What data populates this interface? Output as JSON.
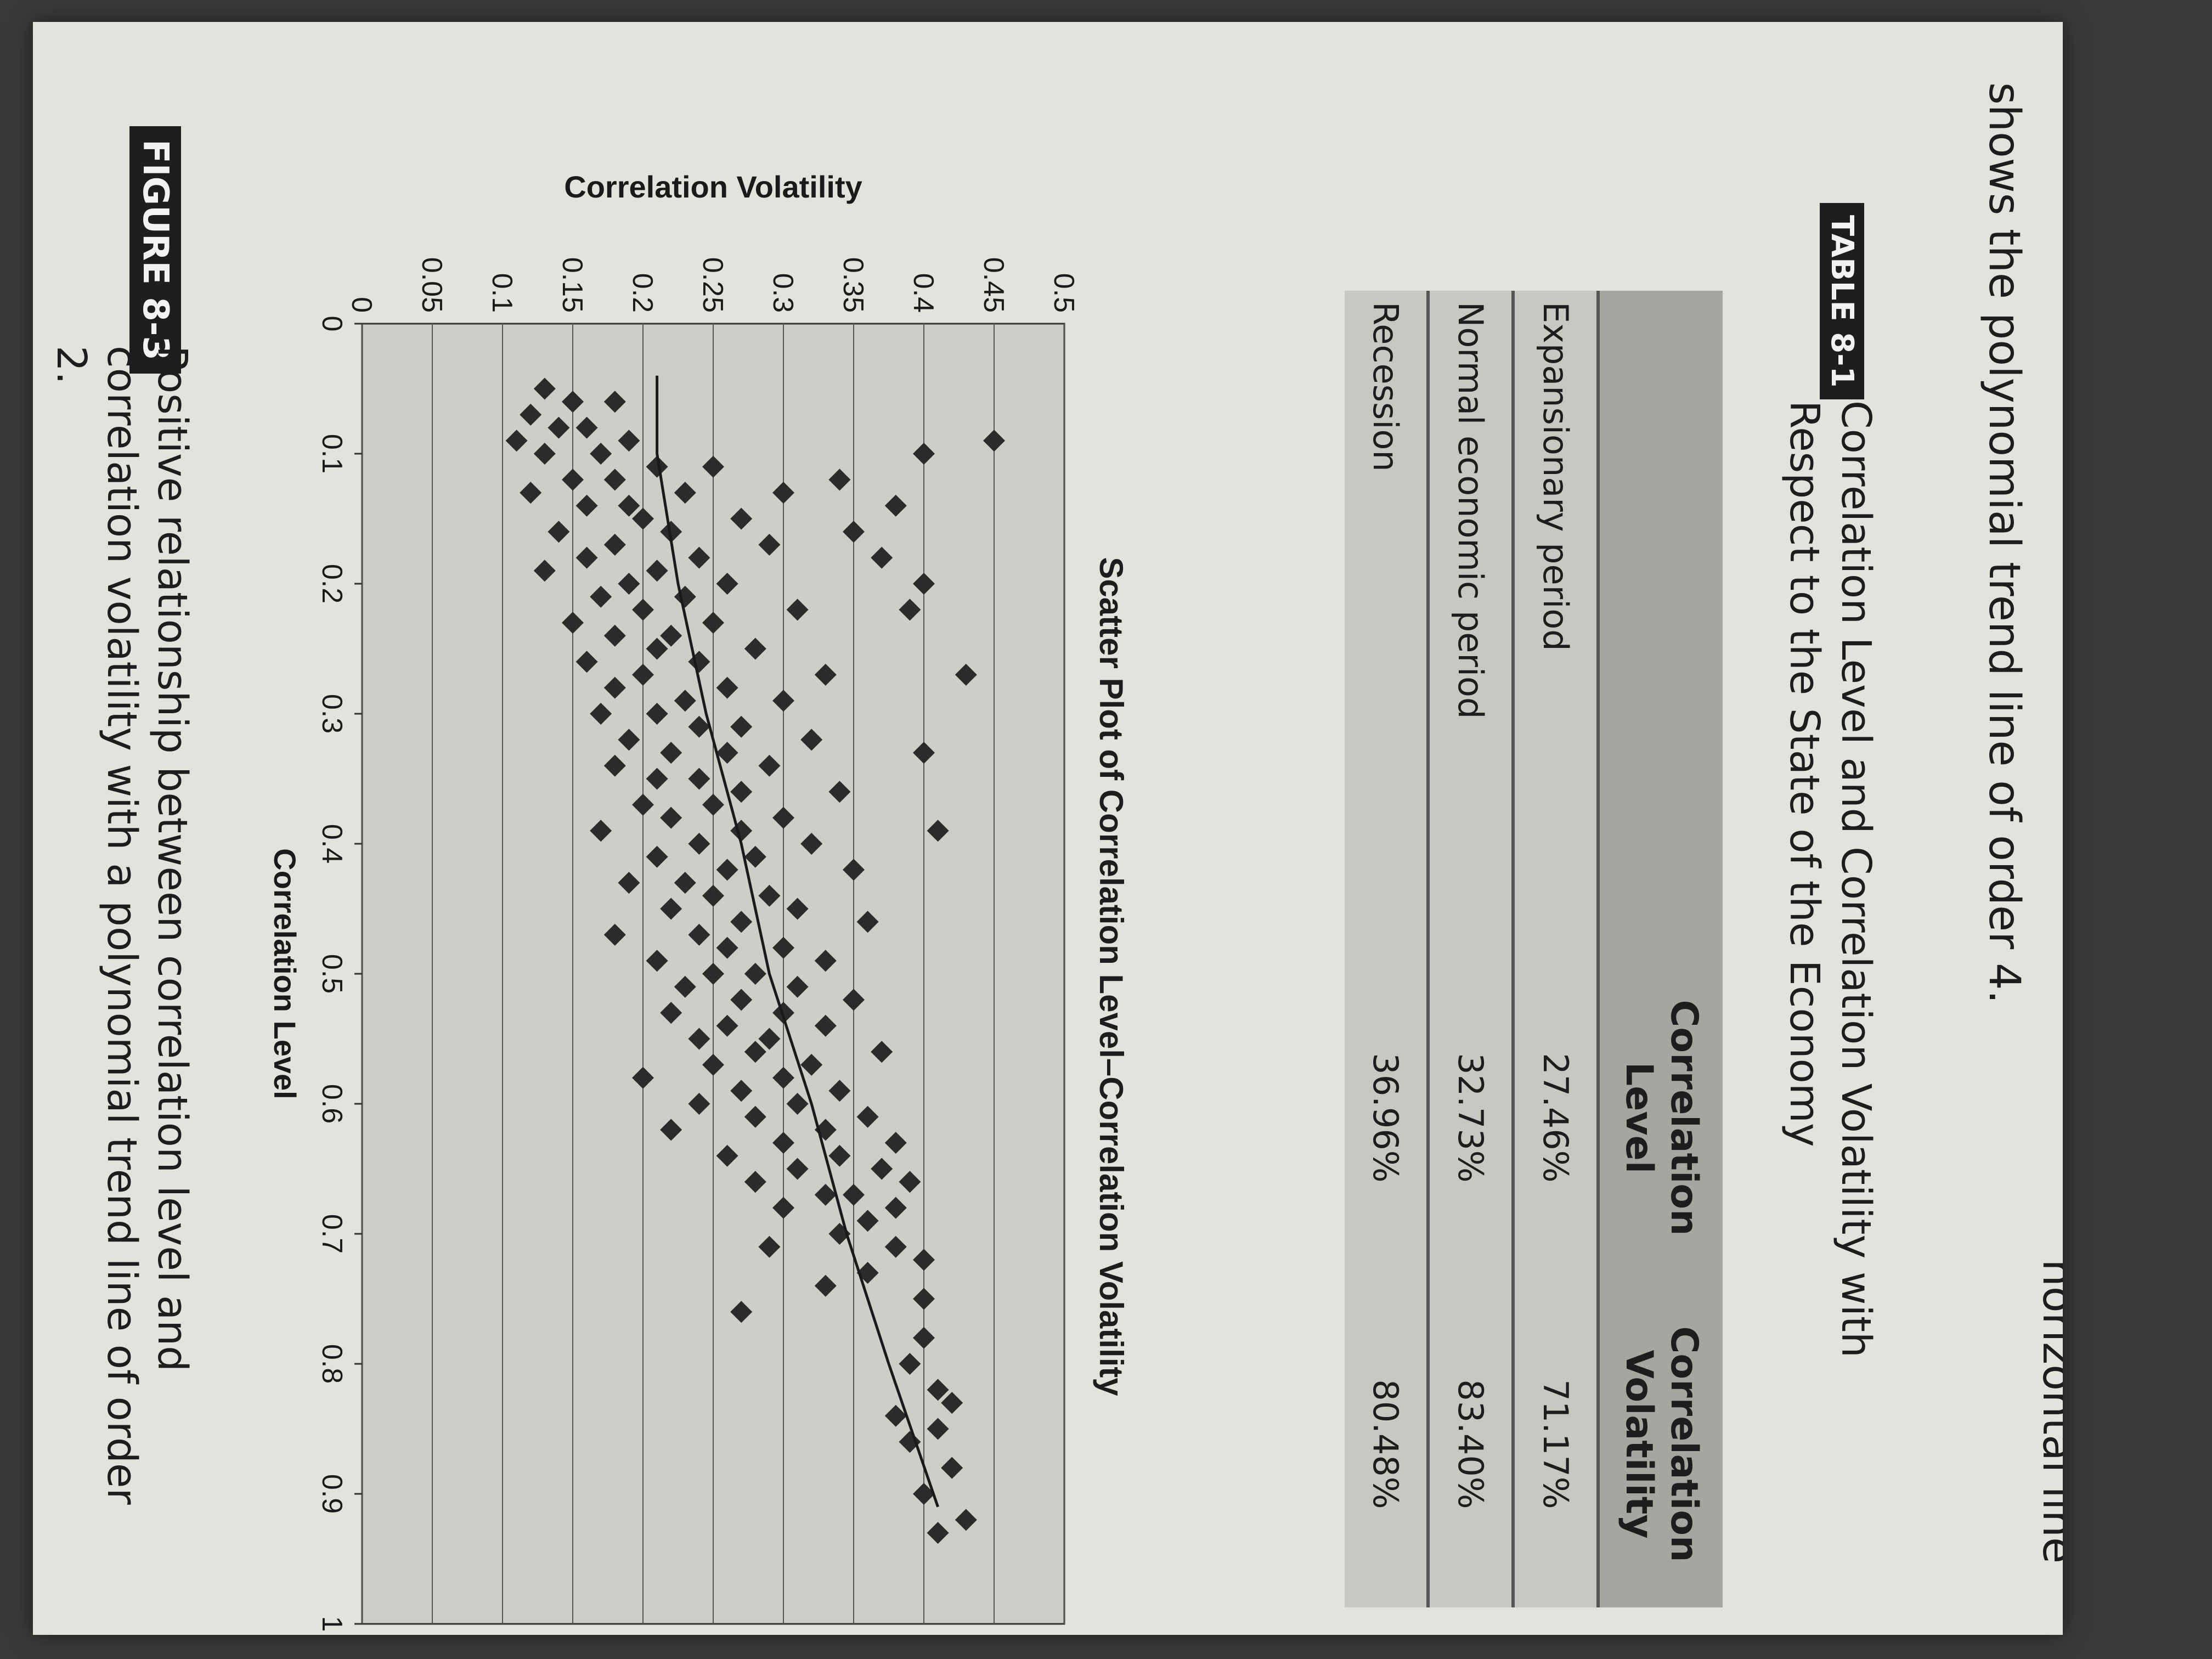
{
  "intro_text": {
    "line1": "shows the polynomial trend line of order 4.",
    "line2": "horizontal line"
  },
  "table": {
    "label": "TABLE 8-1",
    "caption": "Correlation Level and Correlation Volatility with Respect to the State of the Economy",
    "headers": [
      "",
      "Correlation Level",
      "Correlation Volatility"
    ],
    "rows": [
      [
        "Expansionary period",
        "27.46%",
        "71.17%"
      ],
      [
        "Normal economic period",
        "32.73%",
        "83.40%"
      ],
      [
        "Recession",
        "36.96%",
        "80.48%"
      ]
    ]
  },
  "figure": {
    "label": "FIGURE 8-3",
    "caption": "Positive relationship between correlation level and correlation volatility with a polynomial trend line of order 2."
  },
  "chart_data": {
    "type": "scatter",
    "title": "Scatter Plot of Correlation Level–Correlation Volatility",
    "xlabel": "Correlation Level",
    "ylabel": "Correlation Volatility",
    "xlim": [
      0,
      1
    ],
    "ylim": [
      0,
      0.5
    ],
    "xticks": [
      "0",
      "0.1",
      "0.2",
      "0.3",
      "0.4",
      "0.5",
      "0.6",
      "0.7",
      "0.8",
      "0.9",
      "1"
    ],
    "yticks": [
      "0",
      "0.05",
      "0.1",
      "0.15",
      "0.2",
      "0.25",
      "0.3",
      "0.35",
      "0.4",
      "0.45",
      "0.5"
    ],
    "grid": "horizontal",
    "legend": "none",
    "marker": "diamond",
    "point_color": "#2b2b2b",
    "series": [
      {
        "points": [
          [
            0.05,
            0.13
          ],
          [
            0.06,
            0.15
          ],
          [
            0.06,
            0.18
          ],
          [
            0.07,
            0.12
          ],
          [
            0.08,
            0.14
          ],
          [
            0.08,
            0.16
          ],
          [
            0.09,
            0.19
          ],
          [
            0.09,
            0.11
          ],
          [
            0.1,
            0.17
          ],
          [
            0.1,
            0.13
          ],
          [
            0.11,
            0.21
          ],
          [
            0.11,
            0.25
          ],
          [
            0.12,
            0.15
          ],
          [
            0.12,
            0.18
          ],
          [
            0.13,
            0.12
          ],
          [
            0.13,
            0.23
          ],
          [
            0.14,
            0.19
          ],
          [
            0.14,
            0.16
          ],
          [
            0.15,
            0.27
          ],
          [
            0.15,
            0.2
          ],
          [
            0.16,
            0.14
          ],
          [
            0.16,
            0.22
          ],
          [
            0.17,
            0.18
          ],
          [
            0.17,
            0.29
          ],
          [
            0.18,
            0.16
          ],
          [
            0.18,
            0.24
          ],
          [
            0.19,
            0.21
          ],
          [
            0.19,
            0.13
          ],
          [
            0.2,
            0.19
          ],
          [
            0.2,
            0.26
          ],
          [
            0.21,
            0.17
          ],
          [
            0.21,
            0.23
          ],
          [
            0.22,
            0.31
          ],
          [
            0.22,
            0.2
          ],
          [
            0.23,
            0.15
          ],
          [
            0.23,
            0.25
          ],
          [
            0.24,
            0.22
          ],
          [
            0.24,
            0.18
          ],
          [
            0.25,
            0.28
          ],
          [
            0.25,
            0.21
          ],
          [
            0.26,
            0.16
          ],
          [
            0.26,
            0.24
          ],
          [
            0.27,
            0.33
          ],
          [
            0.27,
            0.2
          ],
          [
            0.28,
            0.26
          ],
          [
            0.28,
            0.18
          ],
          [
            0.29,
            0.23
          ],
          [
            0.29,
            0.3
          ],
          [
            0.3,
            0.21
          ],
          [
            0.3,
            0.17
          ],
          [
            0.31,
            0.27
          ],
          [
            0.31,
            0.24
          ],
          [
            0.32,
            0.19
          ],
          [
            0.32,
            0.32
          ],
          [
            0.33,
            0.22
          ],
          [
            0.33,
            0.26
          ],
          [
            0.34,
            0.18
          ],
          [
            0.34,
            0.29
          ],
          [
            0.35,
            0.24
          ],
          [
            0.35,
            0.21
          ],
          [
            0.36,
            0.34
          ],
          [
            0.36,
            0.27
          ],
          [
            0.37,
            0.2
          ],
          [
            0.37,
            0.25
          ],
          [
            0.38,
            0.3
          ],
          [
            0.38,
            0.22
          ],
          [
            0.39,
            0.27
          ],
          [
            0.39,
            0.17
          ],
          [
            0.4,
            0.24
          ],
          [
            0.4,
            0.32
          ],
          [
            0.41,
            0.21
          ],
          [
            0.41,
            0.28
          ],
          [
            0.42,
            0.26
          ],
          [
            0.42,
            0.35
          ],
          [
            0.43,
            0.23
          ],
          [
            0.43,
            0.19
          ],
          [
            0.44,
            0.29
          ],
          [
            0.44,
            0.25
          ],
          [
            0.45,
            0.31
          ],
          [
            0.45,
            0.22
          ],
          [
            0.46,
            0.27
          ],
          [
            0.46,
            0.36
          ],
          [
            0.47,
            0.24
          ],
          [
            0.47,
            0.18
          ],
          [
            0.48,
            0.3
          ],
          [
            0.48,
            0.26
          ],
          [
            0.49,
            0.33
          ],
          [
            0.49,
            0.21
          ],
          [
            0.5,
            0.28
          ],
          [
            0.5,
            0.25
          ],
          [
            0.51,
            0.31
          ],
          [
            0.51,
            0.23
          ],
          [
            0.52,
            0.27
          ],
          [
            0.52,
            0.35
          ],
          [
            0.53,
            0.22
          ],
          [
            0.53,
            0.3
          ],
          [
            0.54,
            0.26
          ],
          [
            0.54,
            0.33
          ],
          [
            0.55,
            0.29
          ],
          [
            0.55,
            0.24
          ],
          [
            0.56,
            0.37
          ],
          [
            0.56,
            0.28
          ],
          [
            0.57,
            0.25
          ],
          [
            0.57,
            0.32
          ],
          [
            0.58,
            0.2
          ],
          [
            0.58,
            0.3
          ],
          [
            0.59,
            0.27
          ],
          [
            0.59,
            0.34
          ],
          [
            0.6,
            0.31
          ],
          [
            0.6,
            0.24
          ],
          [
            0.61,
            0.36
          ],
          [
            0.61,
            0.28
          ],
          [
            0.62,
            0.33
          ],
          [
            0.62,
            0.22
          ],
          [
            0.63,
            0.3
          ],
          [
            0.63,
            0.38
          ],
          [
            0.64,
            0.34
          ],
          [
            0.64,
            0.26
          ],
          [
            0.65,
            0.37
          ],
          [
            0.65,
            0.31
          ],
          [
            0.66,
            0.39
          ],
          [
            0.66,
            0.28
          ],
          [
            0.67,
            0.35
          ],
          [
            0.67,
            0.33
          ],
          [
            0.68,
            0.38
          ],
          [
            0.68,
            0.3
          ],
          [
            0.69,
            0.36
          ],
          [
            0.7,
            0.34
          ],
          [
            0.71,
            0.29
          ],
          [
            0.71,
            0.38
          ],
          [
            0.72,
            0.4
          ],
          [
            0.73,
            0.36
          ],
          [
            0.74,
            0.33
          ],
          [
            0.75,
            0.4
          ],
          [
            0.76,
            0.27
          ],
          [
            0.78,
            0.4
          ],
          [
            0.8,
            0.39
          ],
          [
            0.82,
            0.41
          ],
          [
            0.83,
            0.42
          ],
          [
            0.84,
            0.38
          ],
          [
            0.85,
            0.41
          ],
          [
            0.86,
            0.39
          ],
          [
            0.88,
            0.42
          ],
          [
            0.9,
            0.4
          ],
          [
            0.92,
            0.43
          ],
          [
            0.93,
            0.41
          ],
          [
            0.1,
            0.4
          ],
          [
            0.09,
            0.45
          ],
          [
            0.2,
            0.4
          ],
          [
            0.33,
            0.4
          ],
          [
            0.39,
            0.41
          ],
          [
            0.22,
            0.39
          ],
          [
            0.27,
            0.43
          ],
          [
            0.13,
            0.3
          ],
          [
            0.18,
            0.37
          ],
          [
            0.12,
            0.34
          ],
          [
            0.16,
            0.35
          ],
          [
            0.14,
            0.38
          ]
        ]
      }
    ],
    "trendline": {
      "type": "polynomial",
      "order": 2,
      "x_range": [
        0.04,
        0.91
      ],
      "points": [
        [
          0.04,
          0.21
        ],
        [
          0.1,
          0.21
        ],
        [
          0.2,
          0.225
        ],
        [
          0.3,
          0.245
        ],
        [
          0.4,
          0.27
        ],
        [
          0.5,
          0.29
        ],
        [
          0.6,
          0.32
        ],
        [
          0.7,
          0.345
        ],
        [
          0.8,
          0.375
        ],
        [
          0.91,
          0.41
        ]
      ]
    }
  }
}
